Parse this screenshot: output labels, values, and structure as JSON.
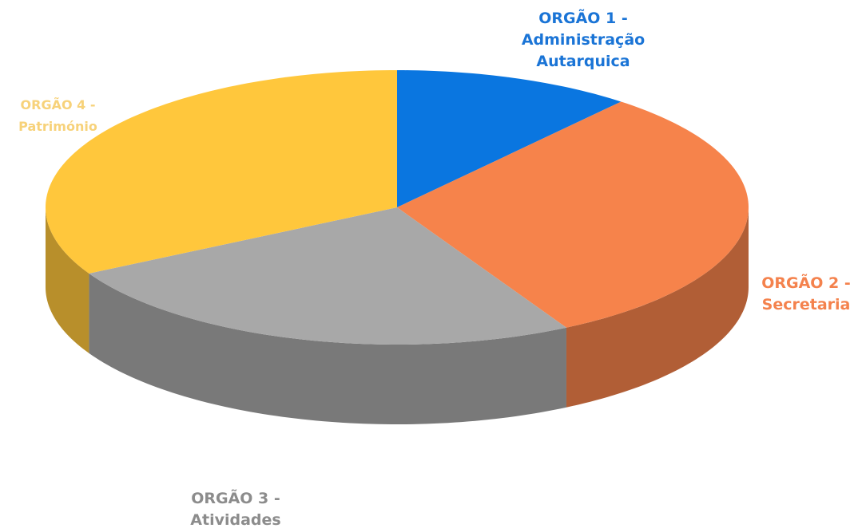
{
  "chart_data": {
    "type": "pie3d",
    "categories": [
      "ORGÃO 1 - Administração Autarquica",
      "ORGÃO 2 - Secretaria",
      "ORGÃO 3 - Atividades",
      "ORGÃO 4 - Património"
    ],
    "values": [
      11,
      31,
      25,
      33
    ],
    "colors": [
      "#0a76e0",
      "#f6834b",
      "#a8a8a8",
      "#ffc73c"
    ],
    "label_colors": [
      "#1a74d6",
      "#f4824d",
      "#8c8c8c",
      "#f7d27a"
    ]
  }
}
